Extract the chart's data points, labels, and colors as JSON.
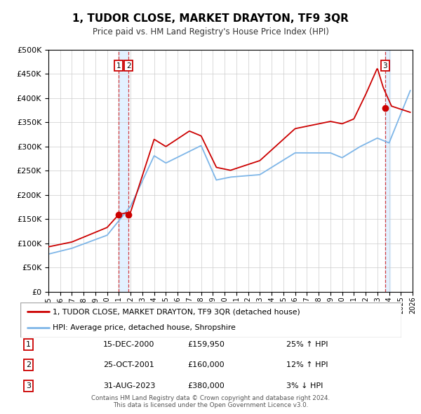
{
  "title": "1, TUDOR CLOSE, MARKET DRAYTON, TF9 3QR",
  "subtitle": "Price paid vs. HM Land Registry's House Price Index (HPI)",
  "legend_label_red": "1, TUDOR CLOSE, MARKET DRAYTON, TF9 3QR (detached house)",
  "legend_label_blue": "HPI: Average price, detached house, Shropshire",
  "footer_line1": "Contains HM Land Registry data © Crown copyright and database right 2024.",
  "footer_line2": "This data is licensed under the Open Government Licence v3.0.",
  "transactions": [
    {
      "num": 1,
      "date": "15-DEC-2000",
      "price": "£159,950",
      "hpi_change": "25% ↑ HPI",
      "year": 2000.96
    },
    {
      "num": 2,
      "date": "25-OCT-2001",
      "price": "£160,000",
      "hpi_change": "12% ↑ HPI",
      "year": 2001.82
    },
    {
      "num": 3,
      "date": "31-AUG-2023",
      "price": "£380,000",
      "hpi_change": "3% ↓ HPI",
      "year": 2023.66
    }
  ],
  "hpi_color": "#7eb6e8",
  "price_color": "#cc0000",
  "marker_color": "#cc0000",
  "shade_color": "#ddeeff",
  "ylim": [
    0,
    500000
  ],
  "yticks": [
    0,
    50000,
    100000,
    150000,
    200000,
    250000,
    300000,
    350000,
    400000,
    450000,
    500000
  ],
  "xlim": [
    1995,
    2026
  ],
  "xticks": [
    1995,
    1996,
    1997,
    1998,
    1999,
    2000,
    2001,
    2002,
    2003,
    2004,
    2005,
    2006,
    2007,
    2008,
    2009,
    2010,
    2011,
    2012,
    2013,
    2014,
    2015,
    2016,
    2017,
    2018,
    2019,
    2020,
    2021,
    2022,
    2023,
    2024,
    2025,
    2026
  ],
  "t1_price_val": 159950,
  "t2_price_val": 160000,
  "t3_price_val": 380000
}
